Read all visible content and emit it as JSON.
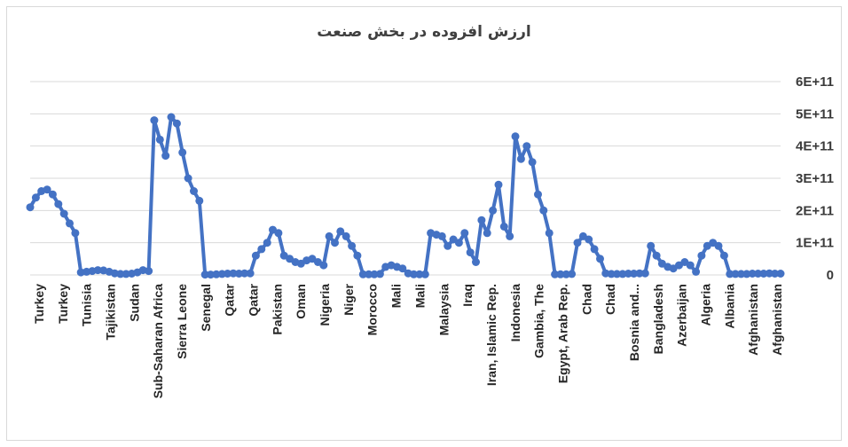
{
  "chart_data": {
    "type": "line",
    "title": "ارزش افزوده در بخش صنعت",
    "xlabel": "",
    "ylabel": "",
    "ylim": [
      0,
      600000000000
    ],
    "y_ticks": [
      "0",
      "1E+11",
      "2E+11",
      "3E+11",
      "4E+11",
      "5E+11",
      "6E+11"
    ],
    "x_tick_labels": [
      "Turkey",
      "Turkey",
      "Tunisia",
      "Tajikistan",
      "Sudan",
      "Sub-Saharan Africa",
      "Sierra Leone",
      "Senegal",
      "Qatar",
      "Qatar",
      "Pakistan",
      "Oman",
      "Nigeria",
      "Niger",
      "Morocco",
      "Mali",
      "Mali",
      "Malaysia",
      "Iraq",
      "Iran, Islamic Rep.",
      "Indonesia",
      "Gambia, The",
      "Egypt, Arab Rep.",
      "Chad",
      "Chad",
      "Bosnia and...",
      "Bangladesh",
      "Azerbaijan",
      "Algeria",
      "Albania",
      "Afghanistan",
      "Afghanistan"
    ],
    "grid": true,
    "legend": "none",
    "series": [
      {
        "color": "#4472c4",
        "values": [
          210000000000.0,
          240000000000.0,
          260000000000.0,
          265000000000.0,
          250000000000.0,
          220000000000.0,
          190000000000.0,
          160000000000.0,
          130000000000.0,
          8000000000.0,
          10000000000.0,
          12000000000.0,
          15000000000.0,
          14000000000.0,
          10000000000.0,
          5000000000.0,
          3000000000.0,
          3000000000.0,
          4000000000.0,
          8000000000.0,
          15000000000.0,
          12000000000.0,
          480000000000.0,
          420000000000.0,
          370000000000.0,
          490000000000.0,
          470000000000.0,
          380000000000.0,
          300000000000.0,
          260000000000.0,
          230000000000.0,
          1000000000.0,
          1000000000.0,
          2000000000.0,
          3000000000.0,
          4000000000.0,
          5000000000.0,
          4000000000.0,
          5000000000.0,
          5000000000.0,
          60000000000.0,
          80000000000.0,
          100000000000.0,
          140000000000.0,
          130000000000.0,
          60000000000.0,
          50000000000.0,
          40000000000.0,
          35000000000.0,
          45000000000.0,
          50000000000.0,
          40000000000.0,
          30000000000.0,
          120000000000.0,
          100000000000.0,
          135000000000.0,
          120000000000.0,
          90000000000.0,
          60000000000.0,
          2000000000.0,
          2000000000.0,
          2000000000.0,
          3000000000.0,
          25000000000.0,
          30000000000.0,
          25000000000.0,
          20000000000.0,
          5000000000.0,
          2000000000.0,
          2000000000.0,
          2000000000.0,
          130000000000.0,
          125000000000.0,
          120000000000.0,
          90000000000.0,
          110000000000.0,
          100000000000.0,
          130000000000.0,
          70000000000.0,
          40000000000.0,
          170000000000.0,
          130000000000.0,
          200000000000.0,
          280000000000.0,
          150000000000.0,
          120000000000.0,
          430000000000.0,
          360000000000.0,
          400000000000.0,
          350000000000.0,
          250000000000.0,
          200000000000.0,
          130000000000.0,
          2000000000.0,
          2000000000.0,
          2000000000.0,
          3000000000.0,
          100000000000.0,
          120000000000.0,
          110000000000.0,
          80000000000.0,
          50000000000.0,
          5000000000.0,
          3000000000.0,
          3000000000.0,
          3000000000.0,
          4000000000.0,
          4000000000.0,
          5000000000.0,
          5000000000.0,
          90000000000.0,
          60000000000.0,
          35000000000.0,
          25000000000.0,
          20000000000.0,
          30000000000.0,
          40000000000.0,
          30000000000.0,
          10000000000.0,
          60000000000.0,
          90000000000.0,
          100000000000.0,
          90000000000.0,
          60000000000.0,
          3000000000.0,
          3000000000.0,
          3000000000.0,
          3000000000.0,
          4000000000.0,
          4000000000.0,
          4000000000.0,
          5000000000.0,
          4000000000.0,
          4000000000.0
        ]
      }
    ]
  }
}
